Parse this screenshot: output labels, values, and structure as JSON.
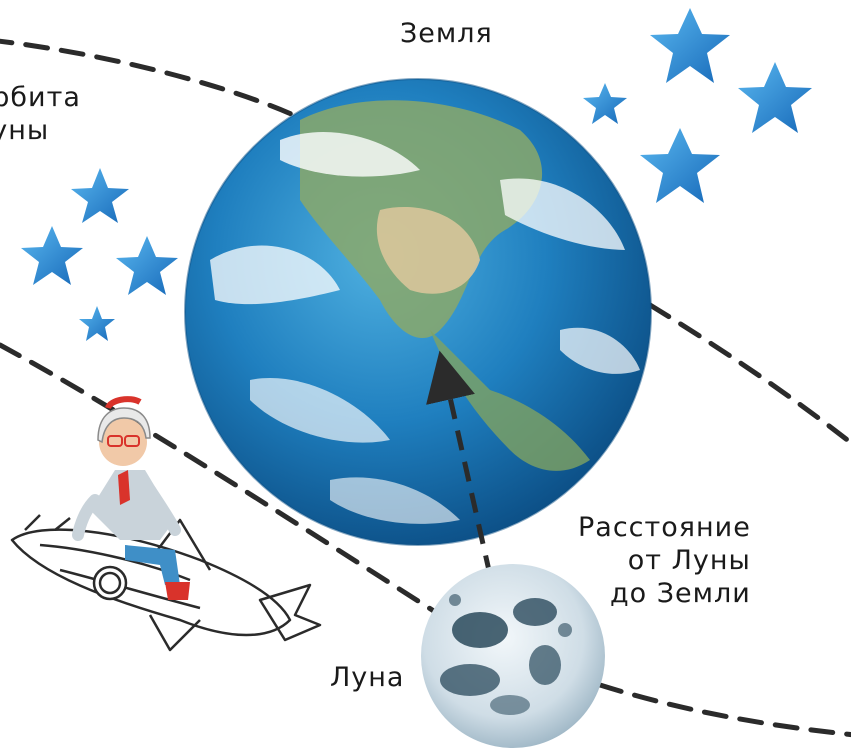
{
  "labels": {
    "earth": "Земля",
    "orbit": "Орбита\nЛуны",
    "moon": "Луна",
    "distance": "Расстояние\nот Луны\nдо Земли"
  },
  "colors": {
    "ocean": "#1f7fbf",
    "ocean_deep": "#0c4f86",
    "land": "#8aa86a",
    "desert": "#d8c59a",
    "cloud": "#ffffff",
    "star": "#1c86d6",
    "star_light": "#5ab8f0",
    "moon": "#cfdde6",
    "moon_dark": "#2a4a5c",
    "line": "#2b2b2b"
  },
  "icons": [
    "star-icon",
    "rocket-icon",
    "astronaut-figure"
  ]
}
